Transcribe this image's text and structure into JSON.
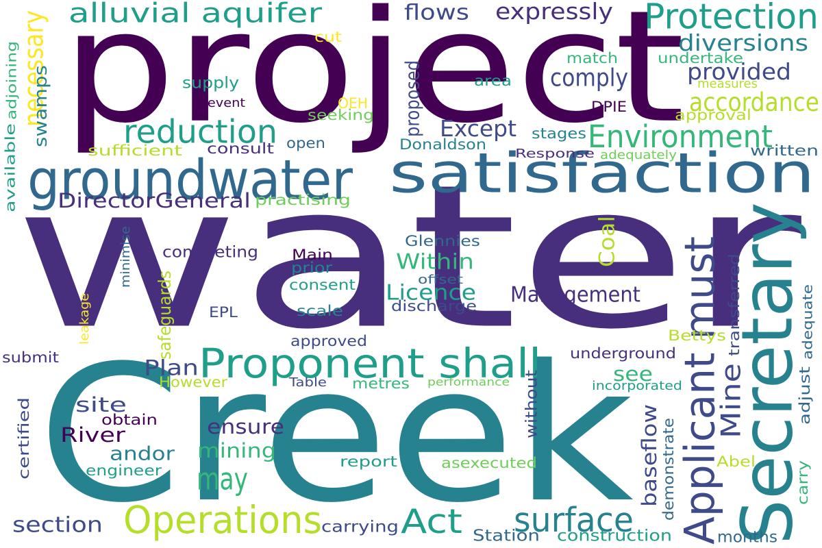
{
  "word_cloud": {
    "background": "#ffffff",
    "palette": {
      "deep_purple": "#440154",
      "indigo": "#472f7d",
      "blue_purple": "#3e4a89",
      "slate_blue": "#31688e",
      "teal_blue": "#26828e",
      "teal": "#1f9e89",
      "green_teal": "#35b779",
      "green": "#6ece58",
      "lime": "#b5de2b",
      "yellow": "#fde725"
    },
    "words": [
      {
        "text": "water",
        "color": "#472f7d"
      },
      {
        "text": "project",
        "color": "#440154"
      },
      {
        "text": "Creek",
        "color": "#26828e"
      },
      {
        "text": "groundwater",
        "color": "#31688e"
      },
      {
        "text": "satisfaction",
        "color": "#31688e"
      },
      {
        "text": "Secretary",
        "color": "#26828e"
      },
      {
        "text": "Applicant must",
        "color": "#3e4a89"
      },
      {
        "text": "Proponent shall",
        "color": "#1f9e89"
      },
      {
        "text": "Operations",
        "color": "#b5de2b"
      },
      {
        "text": "alluvial aquifer",
        "color": "#1f9e89"
      },
      {
        "text": "Protection",
        "color": "#1f9e89"
      },
      {
        "text": "reduction",
        "color": "#1f9e89"
      },
      {
        "text": "Environment",
        "color": "#35b779"
      },
      {
        "text": "Act",
        "color": "#1f9e89"
      },
      {
        "text": "surface",
        "color": "#26828e"
      },
      {
        "text": "may",
        "color": "#35b779"
      },
      {
        "text": "Mine",
        "color": "#3e4a89"
      },
      {
        "text": "necessary",
        "color": "#fde725"
      },
      {
        "text": "swamps",
        "color": "#26828e"
      },
      {
        "text": "accordance",
        "color": "#b5de2b"
      },
      {
        "text": "flows",
        "color": "#3e4a89"
      },
      {
        "text": "expressly",
        "color": "#472f7d"
      },
      {
        "text": "diversions",
        "color": "#26828e"
      },
      {
        "text": "provided",
        "color": "#3e4a89"
      },
      {
        "text": "comply",
        "color": "#3e4a89"
      },
      {
        "text": "Except",
        "color": "#3e4a89"
      },
      {
        "text": "DirectorGeneral",
        "color": "#472f7d"
      },
      {
        "text": "Licence",
        "color": "#1f9e89"
      },
      {
        "text": "Within",
        "color": "#35b779"
      },
      {
        "text": "Management",
        "color": "#472f7d"
      },
      {
        "text": "Coal",
        "color": "#b5de2b"
      },
      {
        "text": "baseflow",
        "color": "#3e4a89"
      },
      {
        "text": "Plan",
        "color": "#3e4a89"
      },
      {
        "text": "see",
        "color": "#35b779"
      },
      {
        "text": "site",
        "color": "#3e4a89"
      },
      {
        "text": "ensure",
        "color": "#472f7d"
      },
      {
        "text": "mining",
        "color": "#35b779"
      },
      {
        "text": "River",
        "color": "#440154"
      },
      {
        "text": "andor",
        "color": "#26828e"
      },
      {
        "text": "section",
        "color": "#3e4a89"
      },
      {
        "text": "cut",
        "color": "#fde725"
      },
      {
        "text": "match",
        "color": "#35b779"
      },
      {
        "text": "undertake",
        "color": "#35b779"
      },
      {
        "text": "measures",
        "color": "#b5de2b"
      },
      {
        "text": "supply",
        "color": "#1f9e89"
      },
      {
        "text": "prevent",
        "color": "#440154"
      },
      {
        "text": "OEH",
        "color": "#fde725"
      },
      {
        "text": "seeking",
        "color": "#6ece58"
      },
      {
        "text": "area",
        "color": "#1f9e89"
      },
      {
        "text": "DPIE",
        "color": "#440154"
      },
      {
        "text": "approval",
        "color": "#b5de2b"
      },
      {
        "text": "proposed",
        "color": "#3e4a89"
      },
      {
        "text": "stages",
        "color": "#26828e"
      },
      {
        "text": "Donaldson",
        "color": "#26828e"
      },
      {
        "text": "open",
        "color": "#31688e"
      },
      {
        "text": "consult",
        "color": "#472f7d"
      },
      {
        "text": "sufficient",
        "color": "#b5de2b"
      },
      {
        "text": "Response",
        "color": "#472f7d"
      },
      {
        "text": "adequately",
        "color": "#6ece58"
      },
      {
        "text": "written",
        "color": "#31688e"
      },
      {
        "text": "available",
        "color": "#1f9e89"
      },
      {
        "text": "adjoining",
        "color": "#35b779"
      },
      {
        "text": "practising",
        "color": "#6ece58"
      },
      {
        "text": "minimise",
        "color": "#31688e"
      },
      {
        "text": "completing",
        "color": "#472f7d"
      },
      {
        "text": "Main",
        "color": "#440154"
      },
      {
        "text": "Glennies",
        "color": "#31688e"
      },
      {
        "text": "prior",
        "color": "#26828e"
      },
      {
        "text": "consent",
        "color": "#1f9e89"
      },
      {
        "text": "offset",
        "color": "#31688e"
      },
      {
        "text": "safeguards",
        "color": "#b5de2b"
      },
      {
        "text": "leakage",
        "color": "#fde725"
      },
      {
        "text": "EPL",
        "color": "#3e4a89"
      },
      {
        "text": "scale",
        "color": "#26828e"
      },
      {
        "text": "discharge",
        "color": "#3e4a89"
      },
      {
        "text": "transferred",
        "color": "#3e4a89"
      },
      {
        "text": "adequate",
        "color": "#31688e"
      },
      {
        "text": "approved",
        "color": "#3e4a89"
      },
      {
        "text": "Bettys",
        "color": "#b5de2b"
      },
      {
        "text": "underground",
        "color": "#472f7d"
      },
      {
        "text": "submit",
        "color": "#472f7d"
      },
      {
        "text": "However",
        "color": "#b5de2b"
      },
      {
        "text": "Table",
        "color": "#3e4a89"
      },
      {
        "text": "metres",
        "color": "#35b779"
      },
      {
        "text": "performance",
        "color": "#6ece58"
      },
      {
        "text": "incorporated",
        "color": "#1f9e89"
      },
      {
        "text": "without",
        "color": "#3e4a89"
      },
      {
        "text": "adjust",
        "color": "#31688e"
      },
      {
        "text": "certified",
        "color": "#3e4a89"
      },
      {
        "text": "obtain",
        "color": "#440154"
      },
      {
        "text": "demonstrate",
        "color": "#31688e"
      },
      {
        "text": "engineer",
        "color": "#1f9e89"
      },
      {
        "text": "report",
        "color": "#1f9e89"
      },
      {
        "text": "asexecuted",
        "color": "#6ece58"
      },
      {
        "text": "Abel",
        "color": "#b5de2b"
      },
      {
        "text": "carry",
        "color": "#35b779"
      },
      {
        "text": "carrying",
        "color": "#3e4a89"
      },
      {
        "text": "Station",
        "color": "#31688e"
      },
      {
        "text": "construction",
        "color": "#1f9e89"
      },
      {
        "text": "months",
        "color": "#31688e"
      }
    ]
  }
}
